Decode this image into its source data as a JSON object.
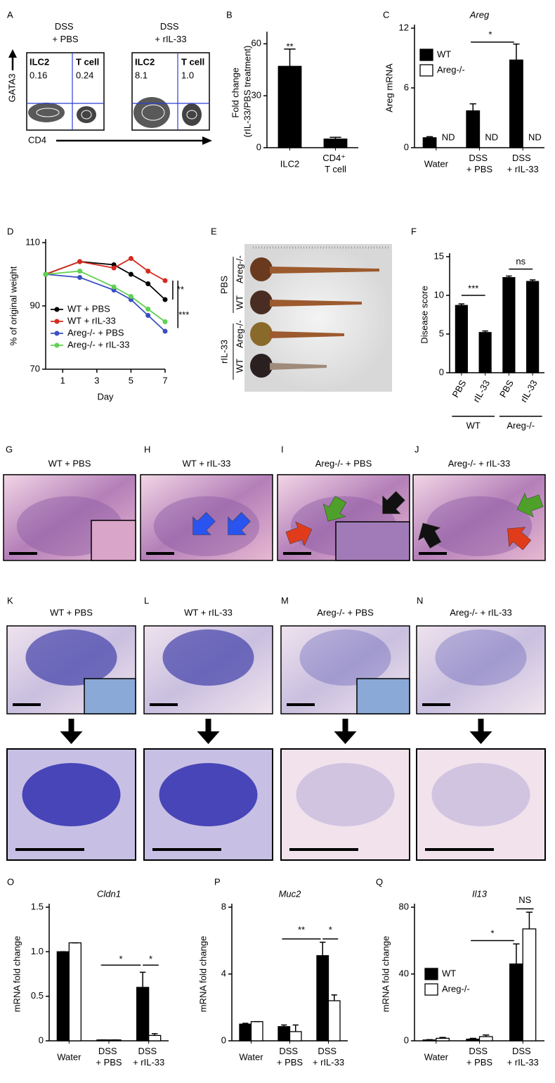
{
  "panel_labels": [
    "A",
    "B",
    "C",
    "D",
    "E",
    "F",
    "G",
    "H",
    "I",
    "J",
    "K",
    "L",
    "M",
    "N",
    "O",
    "P",
    "Q"
  ],
  "flow": {
    "y_label": "GATA3",
    "x_label": "CD4",
    "plots": [
      {
        "title": "DSS + PBS",
        "gates": [
          {
            "name": "ILC2",
            "value": "0.16"
          },
          {
            "name": "T cell",
            "value": "0.24"
          }
        ]
      },
      {
        "title": "DSS + rIL-33",
        "gates": [
          {
            "name": "ILC2",
            "value": "8.1"
          },
          {
            "name": "T cell",
            "value": "1.0"
          }
        ]
      }
    ]
  },
  "photo": {
    "treatments": [
      "PBS",
      "rIL-33"
    ],
    "genotypes": [
      "Areg-/-",
      "WT",
      "Areg-/-",
      "WT"
    ]
  },
  "histology": {
    "he": [
      "WT + PBS",
      "WT + rIL-33",
      "Areg-/- + PBS",
      "Areg-/- + rIL-33"
    ],
    "pas": [
      "WT + PBS",
      "WT + rIL-33",
      "Areg-/- + PBS",
      "Areg-/- + rIL-33"
    ]
  },
  "chart_data": [
    {
      "type": "bar",
      "y_label": "Fold change (rIL-33/PBS treatment)",
      "categories": [
        "ILC2",
        "CD4⁺ T cell"
      ],
      "values": [
        47,
        5
      ],
      "errors": [
        10,
        1
      ],
      "color": "#000000",
      "ylim": [
        0,
        65
      ],
      "yticks": [
        0,
        30,
        60
      ],
      "annotations": [
        "**"
      ]
    },
    {
      "type": "bar",
      "title": "Areg",
      "y_label": "Areg mRNA",
      "categories": [
        "Water",
        "DSS + PBS",
        "DSS + rIL-33"
      ],
      "series": [
        {
          "name": "WT",
          "color": "#000000",
          "values": [
            1,
            3.7,
            8.8
          ],
          "errors": [
            0.1,
            0.7,
            1.6
          ]
        },
        {
          "name": "Areg-/-",
          "color": "#ffffff",
          "values": [
            null,
            null,
            null
          ]
        }
      ],
      "ylim": [
        0,
        12
      ],
      "yticks": [
        0,
        6,
        12
      ],
      "legend": "upper left",
      "annotations": [
        "ND",
        "ND",
        "ND",
        "*"
      ]
    },
    {
      "type": "line",
      "x_label": "Day",
      "y_label": "% of original weight",
      "x": [
        0,
        2,
        4,
        5,
        6,
        7
      ],
      "series": [
        {
          "name": "WT + PBS",
          "color": "#000000",
          "values": [
            100,
            104,
            103,
            100,
            97,
            92
          ]
        },
        {
          "name": "WT + rIL-33",
          "color": "#d62a1e",
          "values": [
            100,
            104,
            102,
            105,
            101,
            98
          ]
        },
        {
          "name": "Areg-/- + PBS",
          "color": "#3a4fc4",
          "values": [
            100,
            99,
            95,
            92,
            87,
            82
          ]
        },
        {
          "name": "Areg-/- + rIL-33",
          "color": "#5fd14f",
          "values": [
            100,
            101,
            96,
            93,
            89,
            85
          ]
        }
      ],
      "xlim": [
        0,
        7
      ],
      "xticks": [
        1,
        3,
        5,
        7
      ],
      "ylim": [
        70,
        110
      ],
      "yticks": [
        70,
        90,
        110
      ],
      "legend": "lower left",
      "annotations": [
        "**",
        "***"
      ]
    },
    {
      "type": "bar",
      "y_label": "Disease score",
      "categories": [
        "PBS",
        "rIL-33",
        "PBS",
        "rIL-33"
      ],
      "group_labels": [
        "WT",
        "Areg-/-"
      ],
      "values": [
        8.7,
        5.2,
        12.3,
        11.8
      ],
      "errors": [
        0.2,
        0.2,
        0.2,
        0.2
      ],
      "color": "#000000",
      "ylim": [
        0,
        15
      ],
      "yticks": [
        0,
        5,
        10,
        15
      ],
      "annotations": [
        "***",
        "ns"
      ]
    },
    {
      "type": "bar",
      "title": "Cldn1",
      "y_label": "mRNA fold change",
      "categories": [
        "Water",
        "DSS + PBS",
        "DSS + rIL-33"
      ],
      "series": [
        {
          "name": "WT",
          "color": "#000000",
          "values": [
            1.0,
            0.01,
            0.6
          ],
          "errors": [
            0,
            0,
            0.17
          ]
        },
        {
          "name": "Areg-/-",
          "color": "#ffffff",
          "values": [
            1.1,
            0.01,
            0.06
          ],
          "errors": [
            0,
            0,
            0.02
          ]
        }
      ],
      "ylim": [
        0,
        1.5
      ],
      "yticks": [
        0,
        0.5,
        {
          "value": 1,
          "label": "1.0"
        },
        1.5
      ],
      "annotations": [
        "*",
        "*"
      ]
    },
    {
      "type": "bar",
      "title": "Muc2",
      "y_label": "mRNA fold change",
      "categories": [
        "Water",
        "DSS + PBS",
        "DSS + rIL-33"
      ],
      "series": [
        {
          "name": "WT",
          "color": "#000000",
          "values": [
            1,
            0.85,
            5.1
          ],
          "errors": [
            0.05,
            0.1,
            0.8
          ]
        },
        {
          "name": "Areg-/-",
          "color": "#ffffff",
          "values": [
            1.15,
            0.55,
            2.4
          ],
          "errors": [
            0,
            0.4,
            0.35
          ]
        }
      ],
      "ylim": [
        0,
        8
      ],
      "yticks": [
        0,
        4,
        8
      ],
      "annotations": [
        "**",
        "*"
      ]
    },
    {
      "type": "bar",
      "title": "Il13",
      "y_label": "mRNA fold change",
      "categories": [
        "Water",
        "DSS + PBS",
        "DSS + rIL-33"
      ],
      "series": [
        {
          "name": "WT",
          "color": "#000000",
          "values": [
            0.5,
            1,
            46
          ],
          "errors": [
            0.2,
            0.5,
            12
          ]
        },
        {
          "name": "Areg-/-",
          "color": "#ffffff",
          "values": [
            1.5,
            2.5,
            67
          ],
          "errors": [
            0.5,
            1,
            10
          ]
        }
      ],
      "ylim": [
        0,
        80
      ],
      "yticks": [
        0,
        40,
        80
      ],
      "legend": "center left",
      "annotations": [
        "*",
        "NS"
      ]
    }
  ]
}
